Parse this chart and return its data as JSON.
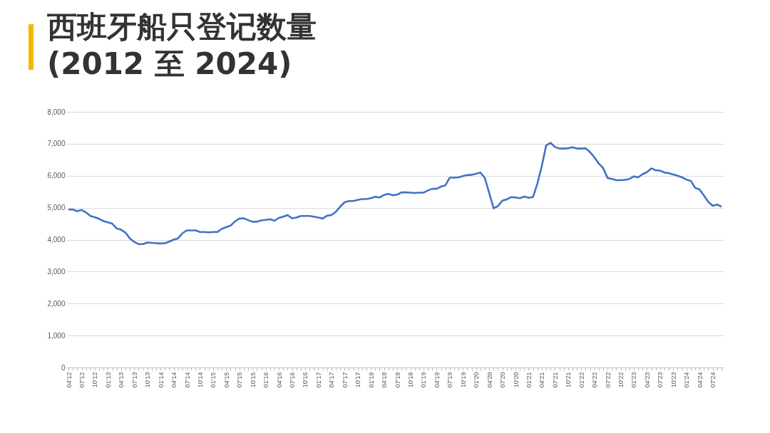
{
  "chart_data": {
    "type": "line",
    "title": "西班牙船只登记数量\n(2012 至 2024)",
    "categories": [
      "04'12",
      null,
      null,
      "07'12",
      null,
      null,
      "10'12",
      null,
      null,
      "01'13",
      null,
      null,
      "04'13",
      null,
      null,
      "07'13",
      null,
      null,
      "10'13",
      null,
      null,
      "01'14",
      null,
      null,
      "04'14",
      null,
      null,
      "07'14",
      null,
      null,
      "10'14",
      null,
      null,
      "01'15",
      null,
      null,
      "04'15",
      null,
      null,
      "07'15",
      null,
      null,
      "10'15",
      null,
      null,
      "01'16",
      null,
      null,
      "04'16",
      null,
      null,
      "07'16",
      null,
      null,
      "10'16",
      null,
      null,
      "01'17",
      null,
      null,
      "04'17",
      null,
      null,
      "07'17",
      null,
      null,
      "10'17",
      null,
      null,
      "01'18",
      null,
      null,
      "04'18",
      null,
      null,
      "07'18",
      null,
      null,
      "10'18",
      null,
      null,
      "01'19",
      null,
      null,
      "04'19",
      null,
      null,
      "07'19",
      null,
      null,
      "10'19",
      null,
      null,
      "01'20",
      null,
      null,
      "04'20",
      null,
      null,
      "07'20",
      null,
      null,
      "10'20",
      null,
      null,
      "01'21",
      null,
      null,
      "04'21",
      null,
      null,
      "07'21",
      null,
      null,
      "10'21",
      null,
      null,
      "01'22",
      null,
      null,
      "04'22",
      null,
      null,
      "07'22",
      null,
      null,
      "10'22",
      null,
      null,
      "01'23",
      null,
      null,
      "04'23",
      null,
      null,
      "07'23",
      null,
      null,
      "10'23",
      null,
      null,
      "01'24",
      null,
      null,
      "04'24",
      null,
      null,
      "07'24",
      null,
      null
    ],
    "series": [
      {
        "color": "#4472c4",
        "values": [
          4940,
          4940,
          4890,
          4930,
          4850,
          4740,
          4700,
          4650,
          4580,
          4540,
          4500,
          4350,
          4310,
          4220,
          4040,
          3930,
          3860,
          3860,
          3910,
          3900,
          3890,
          3880,
          3890,
          3940,
          4000,
          4040,
          4200,
          4290,
          4290,
          4290,
          4240,
          4240,
          4230,
          4240,
          4240,
          4340,
          4390,
          4440,
          4570,
          4660,
          4670,
          4610,
          4560,
          4560,
          4600,
          4620,
          4640,
          4590,
          4680,
          4720,
          4770,
          4670,
          4690,
          4740,
          4740,
          4740,
          4720,
          4690,
          4660,
          4750,
          4770,
          4870,
          5030,
          5170,
          5210,
          5210,
          5240,
          5270,
          5270,
          5300,
          5340,
          5320,
          5400,
          5430,
          5390,
          5410,
          5480,
          5480,
          5470,
          5460,
          5470,
          5470,
          5540,
          5590,
          5590,
          5660,
          5700,
          5940,
          5940,
          5950,
          5990,
          6020,
          6030,
          6060,
          6100,
          5930,
          5460,
          4980,
          5050,
          5220,
          5260,
          5330,
          5320,
          5300,
          5350,
          5310,
          5330,
          5760,
          6300,
          6950,
          7030,
          6900,
          6850,
          6850,
          6860,
          6890,
          6850,
          6850,
          6860,
          6740,
          6580,
          6380,
          6240,
          5930,
          5900,
          5860,
          5860,
          5870,
          5900,
          5980,
          5950,
          6050,
          6110,
          6230,
          6170,
          6160,
          6100,
          6080,
          6040,
          6000,
          5950,
          5880,
          5840,
          5620,
          5570,
          5380,
          5180,
          5060,
          5100,
          5030
        ]
      }
    ],
    "ylim": [
      0,
      8000
    ],
    "yticks": [
      0,
      {
        "value": 1000,
        "label": "1,000"
      },
      {
        "value": 2000,
        "label": "2,000"
      },
      {
        "value": 3000,
        "label": "3,000"
      },
      {
        "value": 4000,
        "label": "4,000"
      },
      {
        "value": 5000,
        "label": "5,000"
      },
      {
        "value": 6000,
        "label": "6,000"
      },
      {
        "value": 7000,
        "label": "7,000"
      },
      {
        "value": 8000,
        "label": "8,000"
      }
    ],
    "grid": "y",
    "marker": "none",
    "line_style": "solid"
  }
}
